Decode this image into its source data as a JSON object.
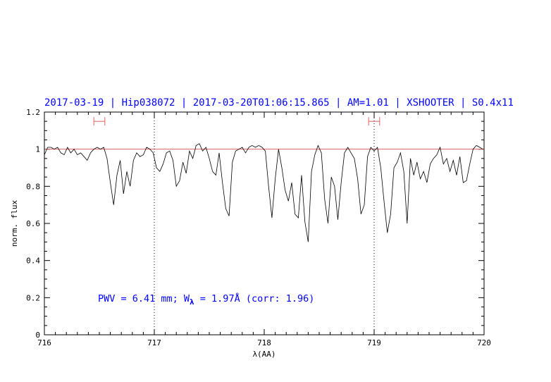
{
  "chart_data": {
    "type": "line",
    "title": "2017-03-19 | Hip038072 | 2017-03-20T01:06:15.865 | AM=1.01 | XSHOOTER | S0.4x11",
    "xlabel": "λ(AA)",
    "ylabel": "norm. flux",
    "xlim": [
      716,
      720
    ],
    "ylim": [
      0,
      1.2
    ],
    "xticks": [
      "716",
      "717",
      "718",
      "719",
      "720"
    ],
    "yticks": [
      "0",
      "0.2",
      "0.4",
      "0.6",
      "0.8",
      "1",
      "1.2"
    ],
    "annotation": "PWV = 6.41 mm; W",
    "annotation_sub": "λ",
    "annotation_tail": " = 1.97Å (corr: 1.96)",
    "reference_line": 1.0,
    "vlines": [
      717.0,
      719.0
    ],
    "ranges": [
      [
        716.45,
        716.55
      ],
      [
        718.95,
        719.05
      ]
    ],
    "range_y": 1.15,
    "colors": {
      "spectrum": "#000000",
      "reference": "#e06060",
      "ranges": "#e06060",
      "text": "#0000ff"
    },
    "series": [
      {
        "x": [
          716.0,
          716.03,
          716.06,
          716.09,
          716.12,
          716.15,
          716.18,
          716.21,
          716.24,
          716.27,
          716.3,
          716.33,
          716.36,
          716.39,
          716.42,
          716.45,
          716.48,
          716.51,
          716.54,
          716.57,
          716.6,
          716.63,
          716.66,
          716.69,
          716.72,
          716.75,
          716.78,
          716.81,
          716.84,
          716.87,
          716.9,
          716.93,
          716.96,
          716.99,
          717.02,
          717.05,
          717.08,
          717.11,
          717.14,
          717.17,
          717.2,
          717.23,
          717.26,
          717.29,
          717.32,
          717.35,
          717.38,
          717.41,
          717.44,
          717.47,
          717.5,
          717.53,
          717.56,
          717.59,
          717.62,
          717.65,
          717.68,
          717.71,
          717.74,
          717.77,
          717.8,
          717.83,
          717.86,
          717.89,
          717.92,
          717.95,
          717.98,
          718.01,
          718.04,
          718.07,
          718.1,
          718.13,
          718.16,
          718.19,
          718.22,
          718.25,
          718.28,
          718.31,
          718.34,
          718.37,
          718.4,
          718.43,
          718.46,
          718.49,
          718.52,
          718.55,
          718.58,
          718.61,
          718.64,
          718.67,
          718.7,
          718.73,
          718.76,
          718.79,
          718.82,
          718.85,
          718.88,
          718.91,
          718.94,
          718.97,
          719.0,
          719.03,
          719.06,
          719.09,
          719.12,
          719.15,
          719.18,
          719.21,
          719.24,
          719.27,
          719.3,
          719.33,
          719.36,
          719.39,
          719.42,
          719.45,
          719.48,
          719.51,
          719.54,
          719.57,
          719.6,
          719.63,
          719.66,
          719.69,
          719.72,
          719.75,
          719.78,
          719.81,
          719.84,
          719.87,
          719.9,
          719.93,
          719.96,
          719.99
        ],
        "y": [
          0.97,
          1.01,
          1.01,
          1.0,
          1.01,
          0.98,
          0.97,
          1.01,
          0.98,
          1.0,
          0.97,
          0.98,
          0.96,
          0.94,
          0.98,
          1.0,
          1.01,
          1.0,
          1.01,
          0.95,
          0.82,
          0.7,
          0.86,
          0.94,
          0.76,
          0.88,
          0.8,
          0.94,
          0.98,
          0.96,
          0.97,
          1.01,
          1.0,
          0.98,
          0.9,
          0.88,
          0.92,
          0.98,
          0.99,
          0.94,
          0.8,
          0.83,
          0.93,
          0.87,
          0.99,
          0.95,
          1.02,
          1.03,
          0.99,
          1.01,
          0.95,
          0.88,
          0.86,
          0.98,
          0.82,
          0.68,
          0.64,
          0.93,
          0.99,
          1.0,
          1.01,
          0.98,
          1.01,
          1.02,
          1.01,
          1.02,
          1.01,
          0.99,
          0.8,
          0.63,
          0.84,
          1.0,
          0.9,
          0.78,
          0.72,
          0.82,
          0.65,
          0.63,
          0.86,
          0.61,
          0.5,
          0.88,
          0.97,
          1.02,
          0.98,
          0.73,
          0.6,
          0.85,
          0.8,
          0.62,
          0.82,
          0.98,
          1.01,
          0.98,
          0.95,
          0.84,
          0.65,
          0.7,
          0.96,
          1.01,
          0.99,
          1.01,
          0.9,
          0.72,
          0.55,
          0.65,
          0.9,
          0.93,
          0.98,
          0.88,
          0.6,
          0.95,
          0.86,
          0.93,
          0.84,
          0.88,
          0.82,
          0.92,
          0.95,
          0.97,
          1.01,
          0.92,
          0.95,
          0.88,
          0.94,
          0.86,
          0.96,
          0.82,
          0.83,
          0.92,
          1.0,
          1.02,
          1.01,
          1.0
        ]
      }
    ]
  }
}
